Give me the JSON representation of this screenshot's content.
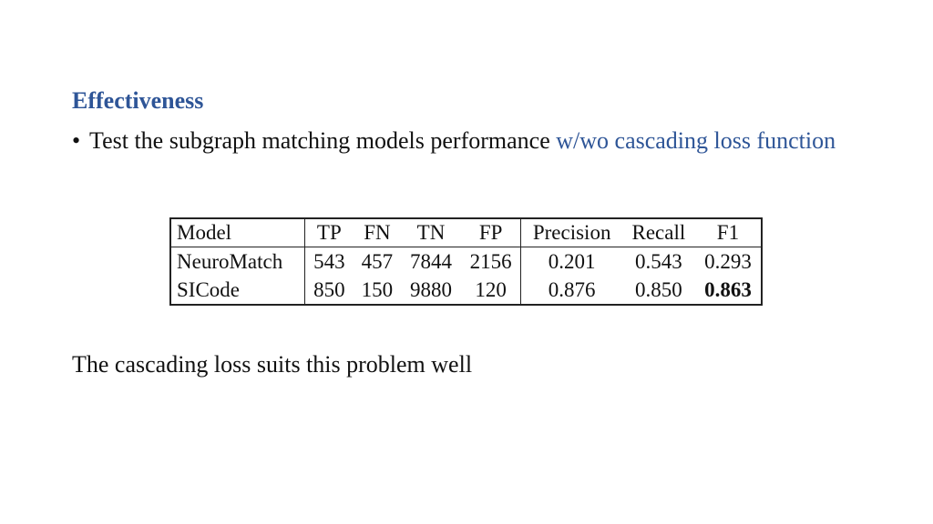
{
  "slide": {
    "heading": "Effectiveness",
    "bullet": {
      "symbol": "•",
      "text_plain": "Test the subgraph matching models performance ",
      "text_highlight": "w/wo cascading loss function",
      "highlight_color": "#2e5597"
    },
    "conclusion": "The cascading loss suits this problem well"
  },
  "table": {
    "headers": [
      "Model",
      "TP",
      "FN",
      "TN",
      "FP",
      "Precision",
      "Recall",
      "F1"
    ],
    "rows": [
      {
        "model": "NeuroMatch",
        "tp": "543",
        "fn": "457",
        "tn": "7844",
        "fp": "2156",
        "precision": "0.201",
        "recall": "0.543",
        "f1": "0.293"
      },
      {
        "model": "SICode",
        "tp": "850",
        "fn": "150",
        "tn": "9880",
        "fp": "120",
        "precision": "0.876",
        "recall": "0.850",
        "f1": "0.863"
      }
    ],
    "bold_cells": [
      "rows.1.f1"
    ]
  }
}
